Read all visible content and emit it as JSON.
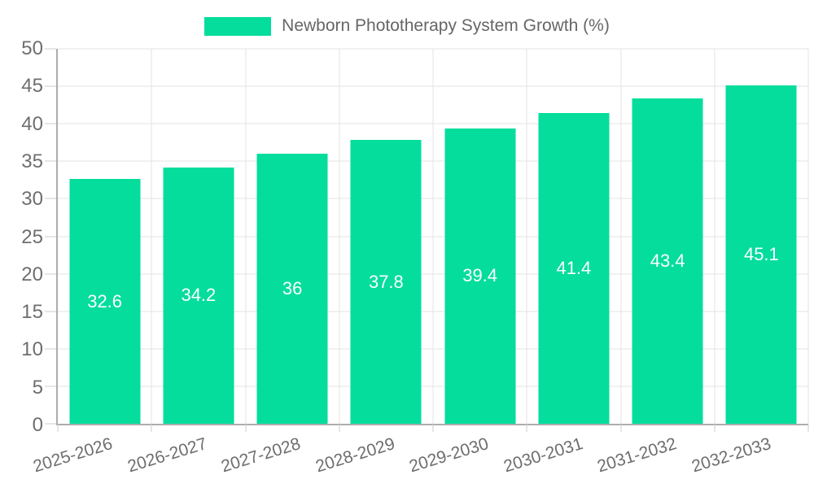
{
  "chart_data": {
    "type": "bar",
    "title": "Newborn Phototherapy System Growth (%)",
    "categories": [
      "2025-2026",
      "2026-2027",
      "2027-2028",
      "2028-2029",
      "2029-2030",
      "2030-2031",
      "2031-2032",
      "2032-2033"
    ],
    "values": [
      32.6,
      34.2,
      36,
      37.8,
      39.4,
      41.4,
      43.4,
      45.1
    ],
    "value_labels": [
      "32.6",
      "34.2",
      "36",
      "37.8",
      "39.4",
      "41.4",
      "43.4",
      "45.1"
    ],
    "xlabel": "",
    "ylabel": "",
    "ylim": [
      0,
      50
    ],
    "y_ticks": [
      0,
      5,
      10,
      15,
      20,
      25,
      30,
      35,
      40,
      45,
      50
    ],
    "grid": true,
    "legend_position": "top-center",
    "colors": {
      "bar": "#04dd9c",
      "bar_label": "#ffffff",
      "axis_line": "#adadad",
      "grid_line": "#e3e3e3",
      "tick_line": "#cccccc",
      "axis_text": "#6e6e6e",
      "legend_text": "#666666",
      "background": "#ffffff"
    }
  },
  "legend": {
    "label": "Newborn Phototherapy System Growth (%)"
  }
}
